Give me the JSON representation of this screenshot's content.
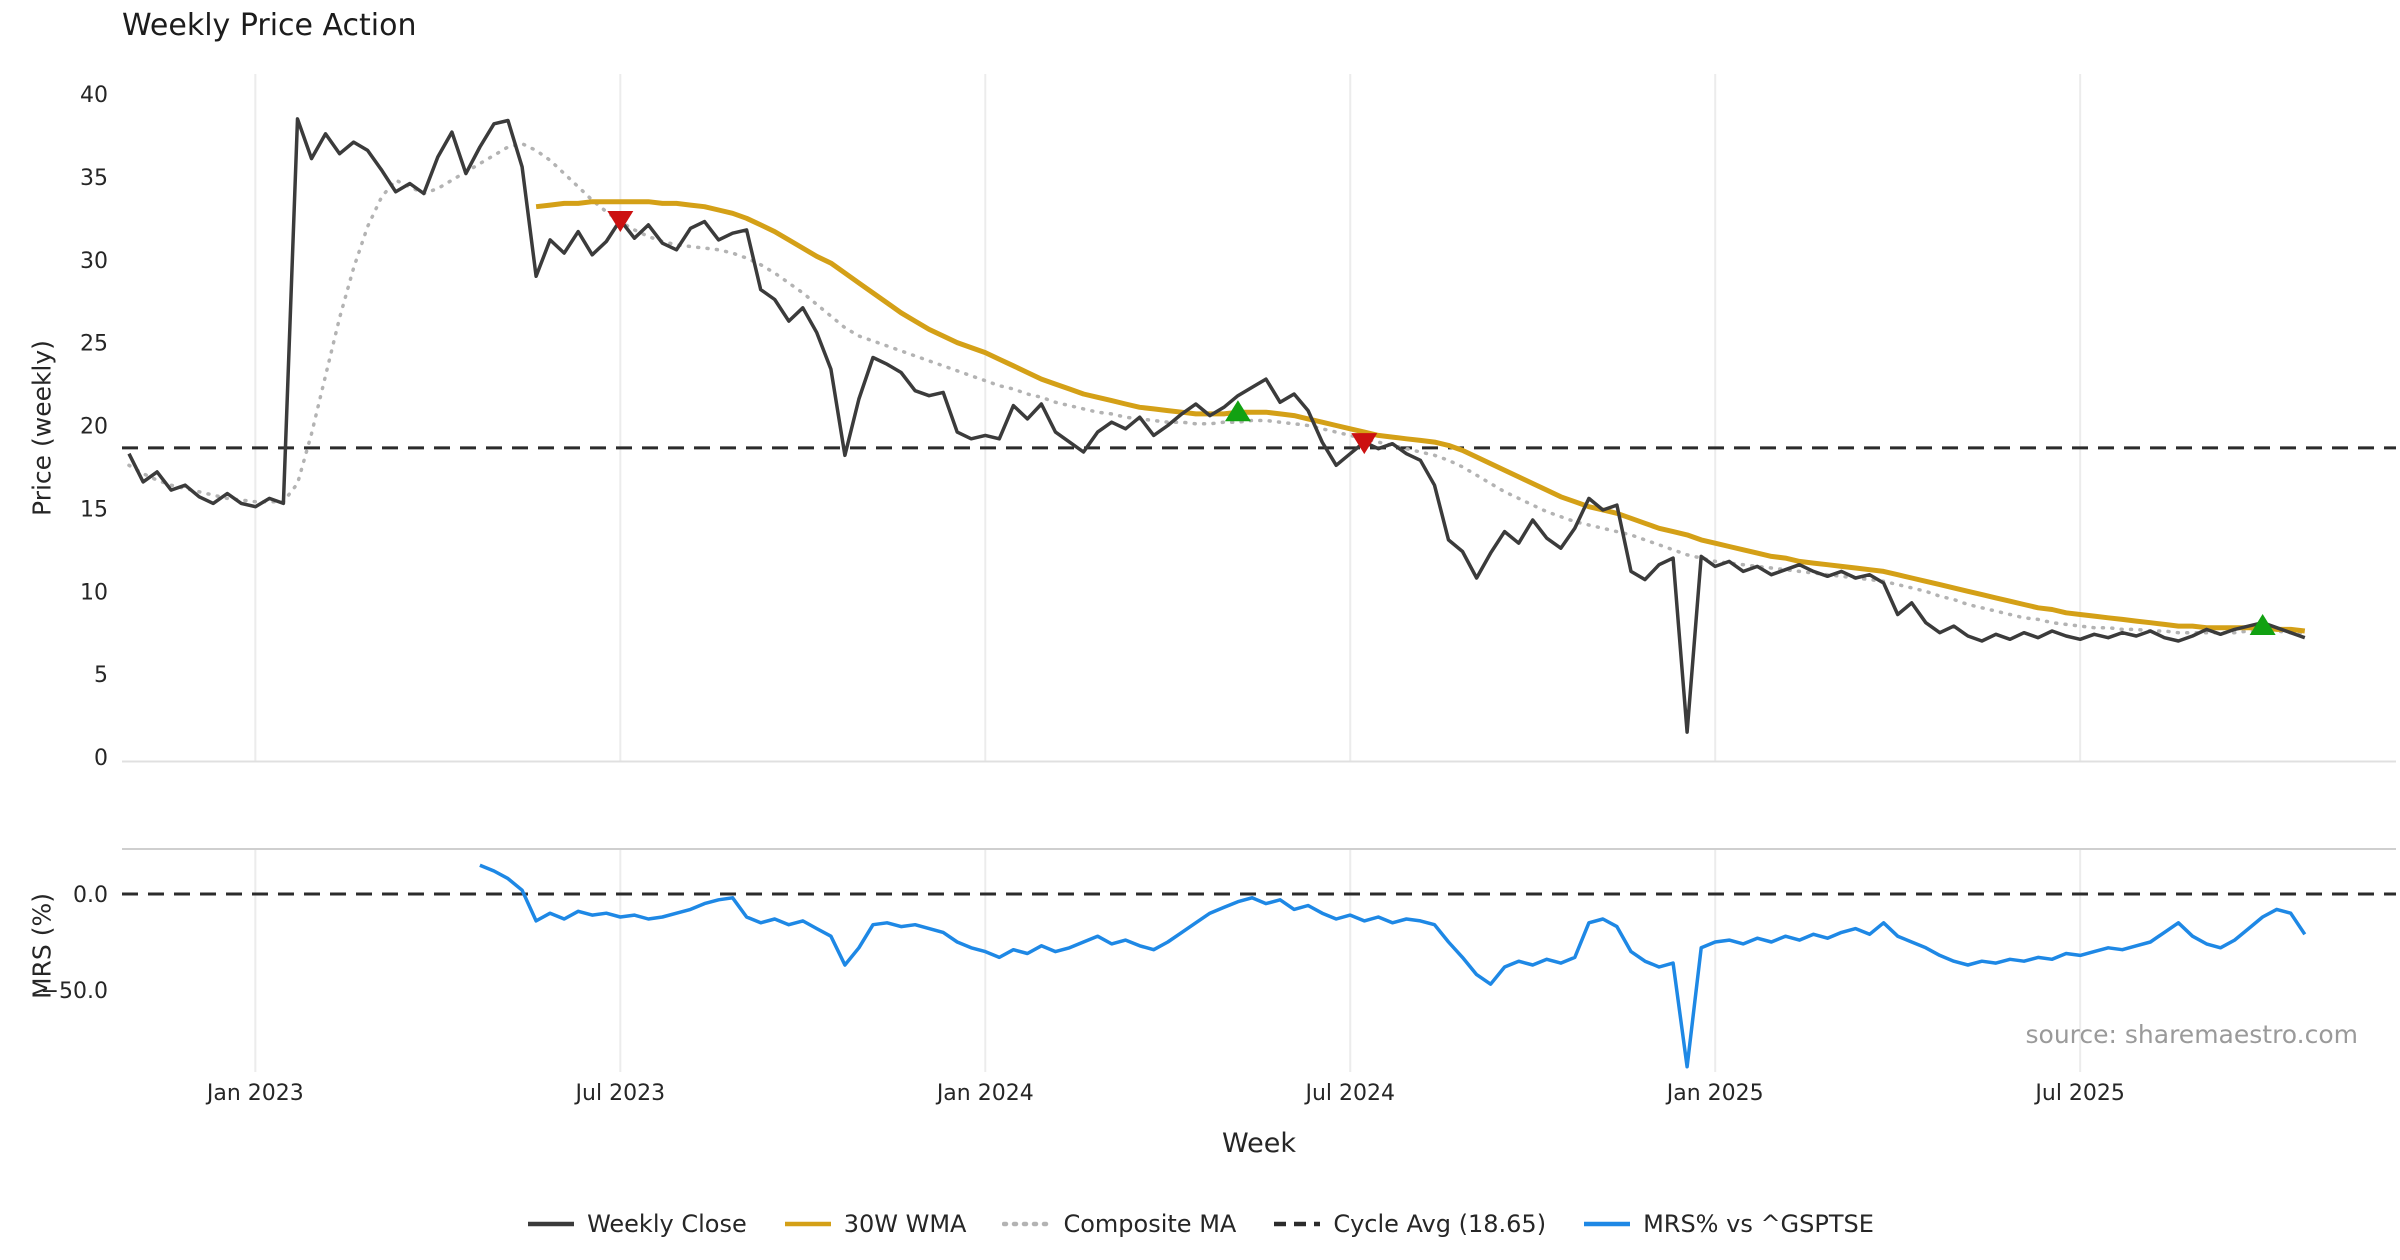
{
  "title": "Weekly Price Action",
  "source_note": "source: sharemaestro.com",
  "colors": {
    "background": "#ffffff",
    "close": "#3b3b3b",
    "wma": "#d4a017",
    "composite": "#b3b3b3",
    "cycle": "#2b2b2b",
    "mrs": "#1e88e5",
    "buy": "#12a112",
    "sell": "#cc1111",
    "grid": "#ececec",
    "spine": "#cfcfcf",
    "tick_text": "#262626",
    "source_text": "#9a9a9a"
  },
  "legend": [
    {
      "label": "Weekly Close",
      "color": "#3b3b3b",
      "style": "solid"
    },
    {
      "label": "30W WMA",
      "color": "#d4a017",
      "style": "solid"
    },
    {
      "label": "Composite MA",
      "color": "#b3b3b3",
      "style": "dotted"
    },
    {
      "label": "Cycle Avg (18.65)",
      "color": "#2b2b2b",
      "style": "dashed"
    },
    {
      "label": "MRS% vs ^GSPTSE",
      "color": "#1e88e5",
      "style": "solid"
    }
  ],
  "chart_data": {
    "type": "line",
    "title": "Weekly Price Action",
    "x_label": "Week",
    "x_unit": "week-index (weekly from late Oct 2022 to Oct 2025)",
    "x_range": [
      -0.5,
      161.5
    ],
    "x_ticks": [
      {
        "label": "Jan 2023",
        "week": 9
      },
      {
        "label": "Jul 2023",
        "week": 35
      },
      {
        "label": "Jan 2024",
        "week": 61
      },
      {
        "label": "Jul 2024",
        "week": 87
      },
      {
        "label": "Jan 2025",
        "week": 113
      },
      {
        "label": "Jul 2025",
        "week": 139
      }
    ],
    "panels": [
      {
        "y_label": "Price (weekly)",
        "y_ticks": [
          0,
          5,
          10,
          15,
          20,
          25,
          30,
          35,
          40
        ],
        "ylim": [
          0,
          42
        ],
        "hline": {
          "name": "Cycle Avg",
          "value": 18.65,
          "style": "dashed"
        },
        "series": [
          {
            "name": "Weekly Close",
            "color": "#3b3b3b",
            "width": 3.5,
            "style": "solid",
            "values": [
              18.3,
              16.6,
              17.2,
              16.1,
              16.4,
              15.7,
              15.3,
              15.9,
              15.3,
              15.1,
              15.6,
              15.3,
              38.5,
              36.1,
              37.6,
              36.4,
              37.1,
              36.6,
              35.4,
              34.1,
              34.6,
              34.0,
              36.2,
              37.7,
              35.2,
              36.8,
              38.2,
              38.4,
              35.6,
              29.0,
              31.2,
              30.4,
              31.7,
              30.3,
              31.1,
              32.4,
              31.3,
              32.1,
              31.0,
              30.6,
              31.9,
              32.3,
              31.2,
              31.6,
              31.8,
              28.2,
              27.6,
              26.3,
              27.1,
              25.6,
              23.4,
              18.2,
              21.6,
              24.1,
              23.7,
              23.2,
              22.1,
              21.8,
              22.0,
              19.6,
              19.2,
              19.4,
              19.2,
              21.2,
              20.4,
              21.3,
              19.6,
              19.0,
              18.4,
              19.6,
              20.2,
              19.8,
              20.5,
              19.4,
              20.0,
              20.7,
              21.3,
              20.6,
              21.1,
              21.8,
              22.3,
              22.8,
              21.4,
              21.9,
              20.9,
              19.0,
              17.6,
              18.3,
              19.0,
              18.6,
              18.9,
              18.3,
              17.9,
              16.4,
              13.1,
              12.4,
              10.8,
              12.3,
              13.6,
              12.9,
              14.3,
              13.2,
              12.6,
              13.8,
              15.6,
              14.9,
              15.2,
              11.2,
              10.7,
              11.6,
              12.0,
              1.5,
              12.1,
              11.5,
              11.8,
              11.2,
              11.5,
              11.0,
              11.3,
              11.6,
              11.2,
              10.9,
              11.2,
              10.8,
              11.0,
              10.5,
              8.6,
              9.3,
              8.1,
              7.5,
              7.9,
              7.3,
              7.0,
              7.4,
              7.1,
              7.5,
              7.2,
              7.6,
              7.3,
              7.1,
              7.4,
              7.2,
              7.5,
              7.3,
              7.6,
              7.2,
              7.0,
              7.3,
              7.7,
              7.4,
              7.7,
              7.9,
              8.1,
              7.8,
              7.5,
              7.2
            ]
          },
          {
            "name": "30W WMA",
            "color": "#d4a017",
            "width": 5,
            "style": "solid",
            "values": [
              null,
              null,
              null,
              null,
              null,
              null,
              null,
              null,
              null,
              null,
              null,
              null,
              null,
              null,
              null,
              null,
              null,
              null,
              null,
              null,
              null,
              null,
              null,
              null,
              null,
              null,
              null,
              null,
              null,
              33.2,
              33.3,
              33.4,
              33.4,
              33.5,
              33.5,
              33.5,
              33.5,
              33.5,
              33.4,
              33.4,
              33.3,
              33.2,
              33.0,
              32.8,
              32.5,
              32.1,
              31.7,
              31.2,
              30.7,
              30.2,
              29.8,
              29.2,
              28.6,
              28.0,
              27.4,
              26.8,
              26.3,
              25.8,
              25.4,
              25.0,
              24.7,
              24.4,
              24.0,
              23.6,
              23.2,
              22.8,
              22.5,
              22.2,
              21.9,
              21.7,
              21.5,
              21.3,
              21.1,
              21.0,
              20.9,
              20.8,
              20.7,
              20.7,
              20.7,
              20.8,
              20.8,
              20.8,
              20.7,
              20.6,
              20.4,
              20.2,
              20.0,
              19.8,
              19.6,
              19.4,
              19.3,
              19.2,
              19.1,
              19.0,
              18.8,
              18.5,
              18.1,
              17.7,
              17.3,
              16.9,
              16.5,
              16.1,
              15.7,
              15.4,
              15.1,
              14.9,
              14.7,
              14.4,
              14.1,
              13.8,
              13.6,
              13.4,
              13.1,
              12.9,
              12.7,
              12.5,
              12.3,
              12.1,
              12.0,
              11.8,
              11.7,
              11.6,
              11.5,
              11.4,
              11.3,
              11.2,
              11.0,
              10.8,
              10.6,
              10.4,
              10.2,
              10.0,
              9.8,
              9.6,
              9.4,
              9.2,
              9.0,
              8.9,
              8.7,
              8.6,
              8.5,
              8.4,
              8.3,
              8.2,
              8.1,
              8.0,
              7.9,
              7.9,
              7.8,
              7.8,
              7.8,
              7.8,
              7.8,
              7.7,
              7.7,
              7.6
            ]
          },
          {
            "name": "Composite MA",
            "color": "#b3b3b3",
            "width": 3.5,
            "style": "dotted",
            "values": [
              17.6,
              17.1,
              16.7,
              16.4,
              16.2,
              16.0,
              15.8,
              15.6,
              15.5,
              15.4,
              15.4,
              15.4,
              16.5,
              19.5,
              23.0,
              26.5,
              29.5,
              32.0,
              33.8,
              34.8,
              34.4,
              34.0,
              34.3,
              34.8,
              35.3,
              35.8,
              36.3,
              36.8,
              37.0,
              36.6,
              36.0,
              35.2,
              34.4,
              33.6,
              32.9,
              32.3,
              31.8,
              31.4,
              31.1,
              30.9,
              30.8,
              30.7,
              30.6,
              30.4,
              30.1,
              29.7,
              29.2,
              28.6,
              28.0,
              27.3,
              26.6,
              25.9,
              25.4,
              25.1,
              24.8,
              24.5,
              24.2,
              23.9,
              23.6,
              23.3,
              23.0,
              22.7,
              22.4,
              22.2,
              21.9,
              21.7,
              21.4,
              21.2,
              21.0,
              20.8,
              20.7,
              20.5,
              20.4,
              20.3,
              20.2,
              20.2,
              20.1,
              20.1,
              20.2,
              20.2,
              20.3,
              20.3,
              20.2,
              20.1,
              20.0,
              19.8,
              19.6,
              19.4,
              19.2,
              19.0,
              18.8,
              18.6,
              18.4,
              18.2,
              17.9,
              17.5,
              17.0,
              16.5,
              16.0,
              15.6,
              15.2,
              14.8,
              14.5,
              14.2,
              14.0,
              13.8,
              13.6,
              13.4,
              13.1,
              12.8,
              12.5,
              12.2,
              12.0,
              11.8,
              11.7,
              11.6,
              11.5,
              11.4,
              11.3,
              11.2,
              11.1,
              11.0,
              10.9,
              10.8,
              10.7,
              10.6,
              10.4,
              10.2,
              10.0,
              9.7,
              9.5,
              9.2,
              9.0,
              8.8,
              8.6,
              8.4,
              8.3,
              8.1,
              8.0,
              7.9,
              7.8,
              7.8,
              7.7,
              7.7,
              7.6,
              7.6,
              7.5,
              7.5,
              7.5,
              7.5,
              7.5,
              7.6,
              7.6,
              7.6,
              7.5,
              7.5
            ]
          }
        ],
        "markers": [
          {
            "week": 35,
            "price": 32.4,
            "type": "sell"
          },
          {
            "week": 79,
            "price": 20.8,
            "type": "buy"
          },
          {
            "week": 88,
            "price": 19.0,
            "type": "sell"
          },
          {
            "week": 152,
            "price": 7.9,
            "type": "buy"
          }
        ]
      },
      {
        "y_label": "MRS (%)",
        "y_ticks": [
          {
            "label": "0.0",
            "value": 0
          },
          {
            "label": "−50.0",
            "value": -50
          }
        ],
        "ylim": [
          -95,
          23
        ],
        "hline": {
          "name": "zero",
          "value": 0,
          "style": "dashed"
        },
        "series": [
          {
            "name": "MRS% vs ^GSPTSE",
            "color": "#1e88e5",
            "width": 3.5,
            "style": "solid",
            "values": [
              null,
              null,
              null,
              null,
              null,
              null,
              null,
              null,
              null,
              null,
              null,
              null,
              null,
              null,
              null,
              null,
              null,
              null,
              null,
              null,
              null,
              null,
              null,
              null,
              null,
              15,
              12,
              8,
              2,
              -14,
              -10,
              -13,
              -9,
              -11,
              -10,
              -12,
              -11,
              -13,
              -12,
              -10,
              -8,
              -5,
              -3,
              -2,
              -12,
              -15,
              -13,
              -16,
              -14,
              -18,
              -22,
              -37,
              -28,
              -16,
              -15,
              -17,
              -16,
              -18,
              -20,
              -25,
              -28,
              -30,
              -33,
              -29,
              -31,
              -27,
              -30,
              -28,
              -25,
              -22,
              -26,
              -24,
              -27,
              -29,
              -25,
              -20,
              -15,
              -10,
              -7,
              -4,
              -2,
              -5,
              -3,
              -8,
              -6,
              -10,
              -13,
              -11,
              -14,
              -12,
              -15,
              -13,
              -14,
              -16,
              -25,
              -33,
              -42,
              -47,
              -38,
              -35,
              -37,
              -34,
              -36,
              -33,
              -15,
              -13,
              -17,
              -30,
              -35,
              -38,
              -36,
              -90,
              -28,
              -25,
              -24,
              -26,
              -23,
              -25,
              -22,
              -24,
              -21,
              -23,
              -20,
              -18,
              -21,
              -15,
              -22,
              -25,
              -28,
              -32,
              -35,
              -37,
              -35,
              -36,
              -34,
              -35,
              -33,
              -34,
              -31,
              -32,
              -30,
              -28,
              -29,
              -27,
              -25,
              -20,
              -15,
              -22,
              -26,
              -28,
              -24,
              -18,
              -12,
              -8,
              -10,
              -21
            ]
          }
        ]
      }
    ]
  }
}
